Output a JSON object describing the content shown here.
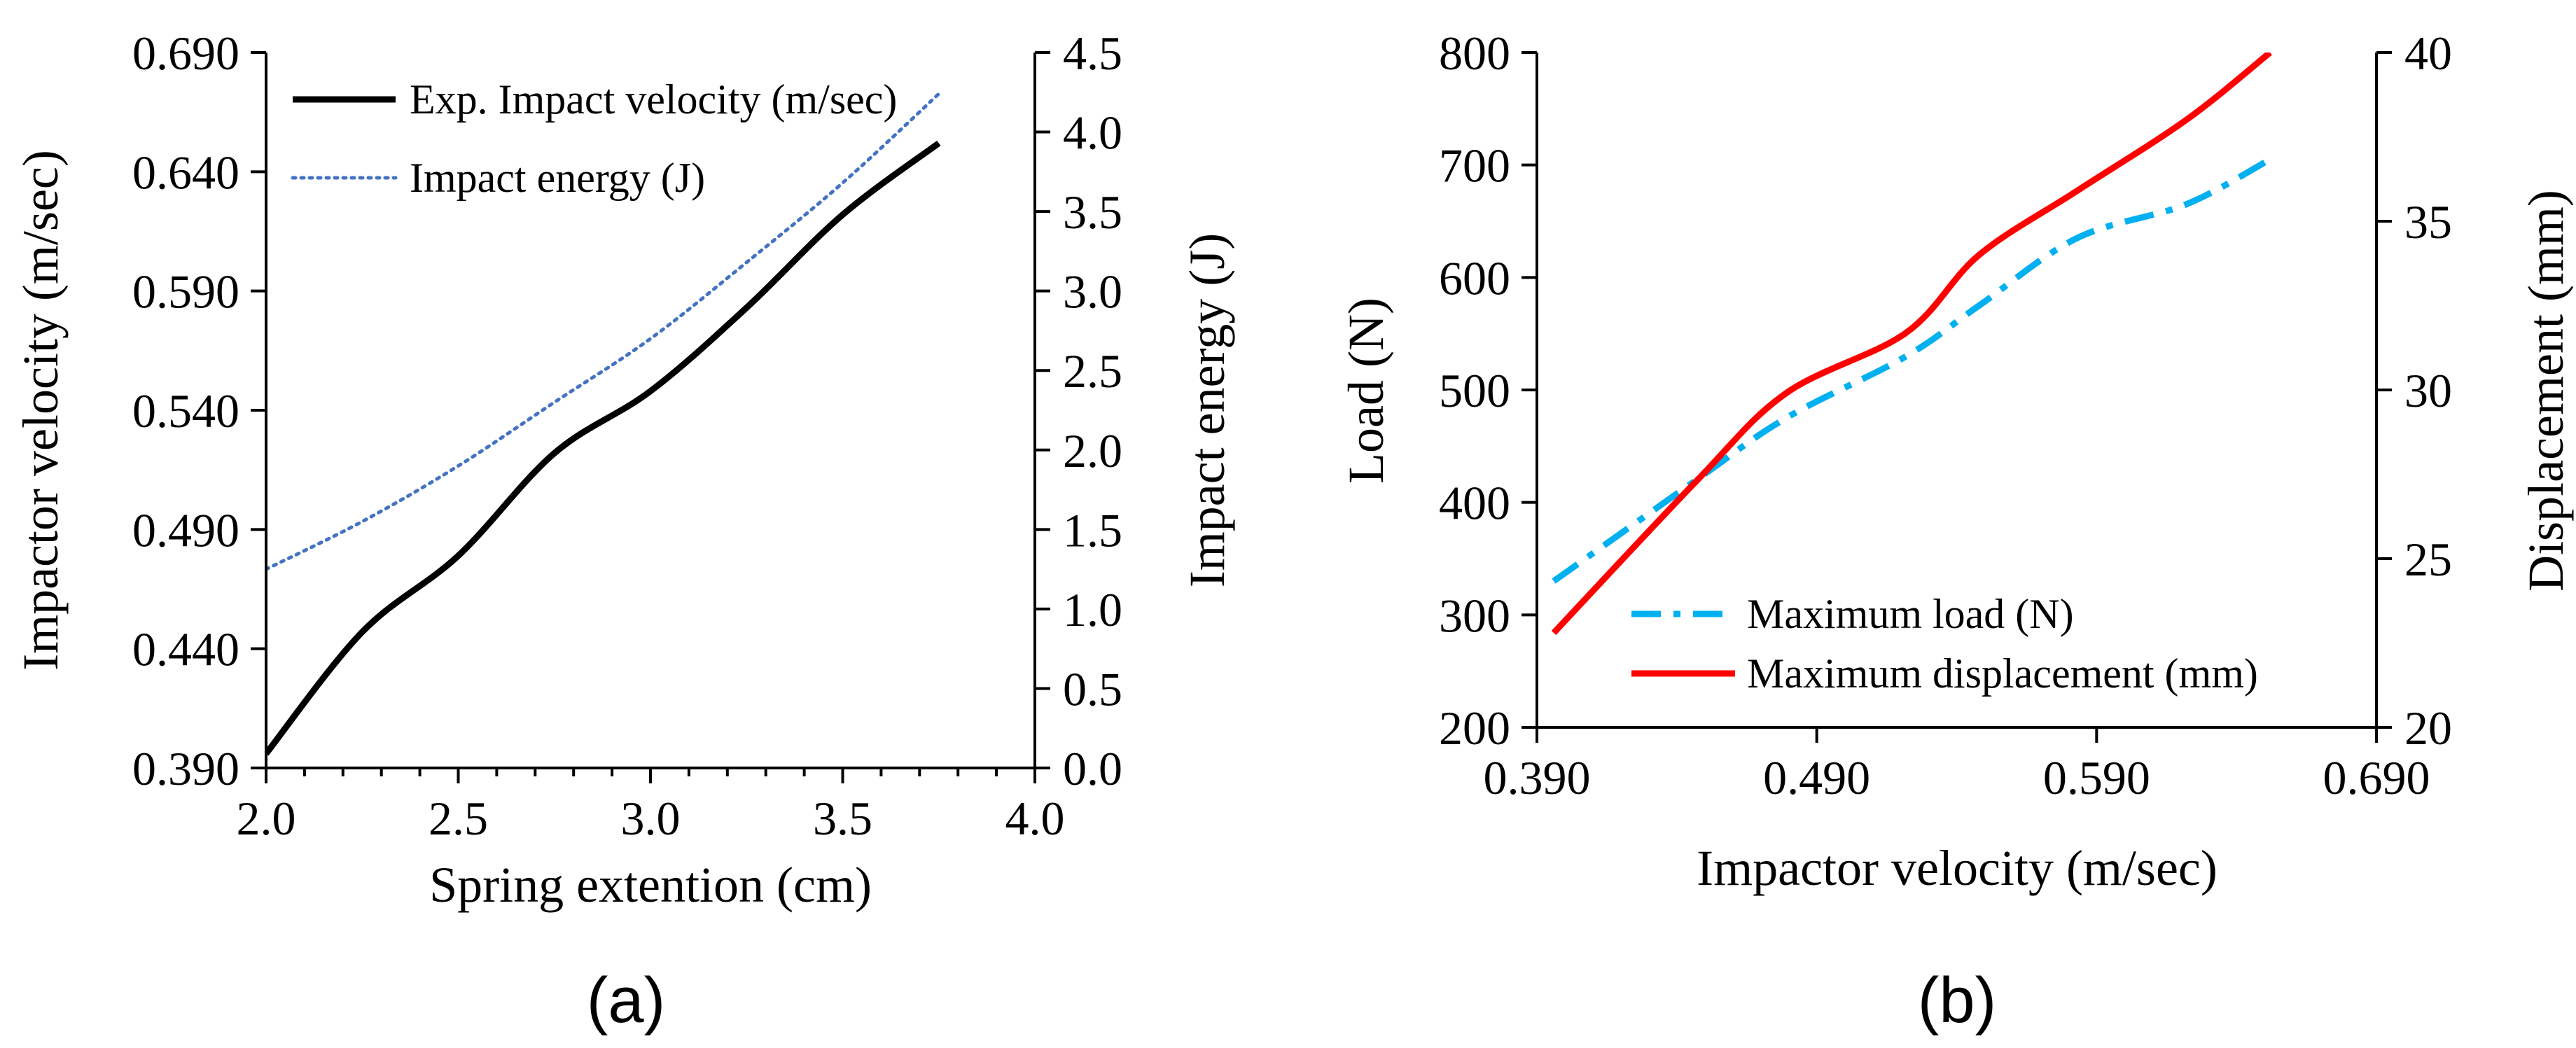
{
  "panel_labels": [
    "(a)",
    "(b)"
  ],
  "chart_data": [
    {
      "type": "line",
      "panel": "(a)",
      "xlabel": "Spring extention (cm)",
      "ylabel": "Impactor velocity (m/sec)",
      "y2label": "Impact energy (J)",
      "xlim": [
        2.0,
        4.0
      ],
      "ylim": [
        0.39,
        0.69
      ],
      "y2lim": [
        0.0,
        4.5
      ],
      "x_ticks": [
        "2.0",
        "2.5",
        "3.0",
        "3.5",
        "4.0"
      ],
      "y_ticks": [
        "0.390",
        "0.440",
        "0.490",
        "0.540",
        "0.590",
        "0.640",
        "0.690"
      ],
      "y2_ticks": [
        "0.0",
        "0.5",
        "1.0",
        "1.5",
        "2.0",
        "2.5",
        "3.0",
        "3.5",
        "4.0",
        "4.5"
      ],
      "grid": false,
      "legend_position": "top-left",
      "series": [
        {
          "name": "Exp. Impact velocity (m/sec)",
          "axis": "left",
          "style": "solid",
          "color": "#000000",
          "x": [
            2.0,
            2.25,
            2.5,
            2.75,
            3.0,
            3.25,
            3.5,
            3.75
          ],
          "y": [
            0.396,
            0.447,
            0.479,
            0.522,
            0.548,
            0.583,
            0.622,
            0.652
          ]
        },
        {
          "name": "Impact energy (J)",
          "axis": "right",
          "style": "dotted",
          "color": "#4472C4",
          "x": [
            2.0,
            2.25,
            2.5,
            2.75,
            3.0,
            3.25,
            3.5,
            3.75
          ],
          "y": [
            1.25,
            1.55,
            1.9,
            2.3,
            2.7,
            3.18,
            3.68,
            4.24
          ]
        }
      ]
    },
    {
      "type": "line",
      "panel": "(b)",
      "xlabel": "Impactor velocity (m/sec)",
      "ylabel": "Load (N)",
      "y2label": "Displacement (mm)",
      "xlim": [
        0.39,
        0.69
      ],
      "ylim": [
        200,
        800
      ],
      "y2lim": [
        20,
        40
      ],
      "x_ticks": [
        "0.390",
        "0.490",
        "0.590",
        "0.690"
      ],
      "y_ticks": [
        "200",
        "300",
        "400",
        "500",
        "600",
        "700",
        "800"
      ],
      "y2_ticks": [
        "20",
        "25",
        "30",
        "35",
        "40"
      ],
      "grid": false,
      "legend_position": "bottom-right",
      "series": [
        {
          "name": "Maximum load (N)",
          "axis": "left",
          "style": "dashdot",
          "color": "#00B0F0",
          "x": [
            0.396,
            0.447,
            0.479,
            0.522,
            0.548,
            0.583,
            0.622,
            0.652
          ],
          "y": [
            330,
            420,
            475,
            530,
            575,
            635,
            665,
            705
          ]
        },
        {
          "name": "Maximum displacement (mm)",
          "axis": "right",
          "style": "solid",
          "color": "#FF0000",
          "x": [
            0.396,
            0.447,
            0.479,
            0.522,
            0.548,
            0.583,
            0.622,
            0.652
          ],
          "y": [
            22.8,
            27.3,
            29.9,
            31.7,
            34.0,
            35.9,
            38.0,
            40.0
          ]
        }
      ]
    }
  ]
}
